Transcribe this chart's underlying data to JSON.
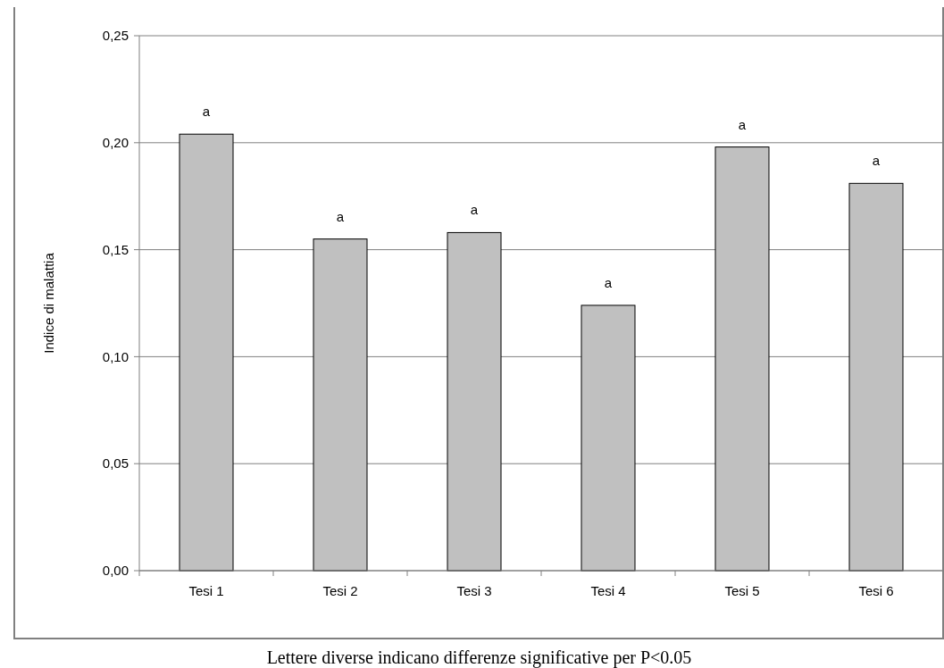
{
  "chart_data": {
    "type": "bar",
    "ylabel": "Indice di malattia",
    "categories": [
      "Tesi 1",
      "Tesi 2",
      "Tesi 3",
      "Tesi 4",
      "Tesi 5",
      "Tesi 6"
    ],
    "values": [
      0.204,
      0.155,
      0.158,
      0.124,
      0.198,
      0.181
    ],
    "color": "#c0c0c0",
    "ylim": [
      0,
      0.25
    ],
    "yticks": [
      {
        "value": 0,
        "label": "0,00"
      },
      {
        "value": 0.05,
        "label": "0,05"
      },
      {
        "value": 0.1,
        "label": "0,10"
      },
      {
        "value": 0.15,
        "label": "0,15"
      },
      {
        "value": 0.2,
        "label": "0,20"
      },
      {
        "value": 0.25,
        "label": "0,25"
      }
    ],
    "grid": "y",
    "annotations": [
      {
        "text": "a",
        "x": "Tesi 1",
        "y": 0.204
      },
      {
        "text": "a",
        "x": "Tesi 2",
        "y": 0.155
      },
      {
        "text": "a",
        "x": "Tesi 3",
        "y": 0.158
      },
      {
        "text": "a",
        "x": "Tesi 4",
        "y": 0.124
      },
      {
        "text": "a",
        "x": "Tesi 5",
        "y": 0.198
      },
      {
        "text": "a",
        "x": "Tesi 6",
        "y": 0.181
      },
      "Lettere diverse indicano differenze significative per P<0.05"
    ]
  }
}
